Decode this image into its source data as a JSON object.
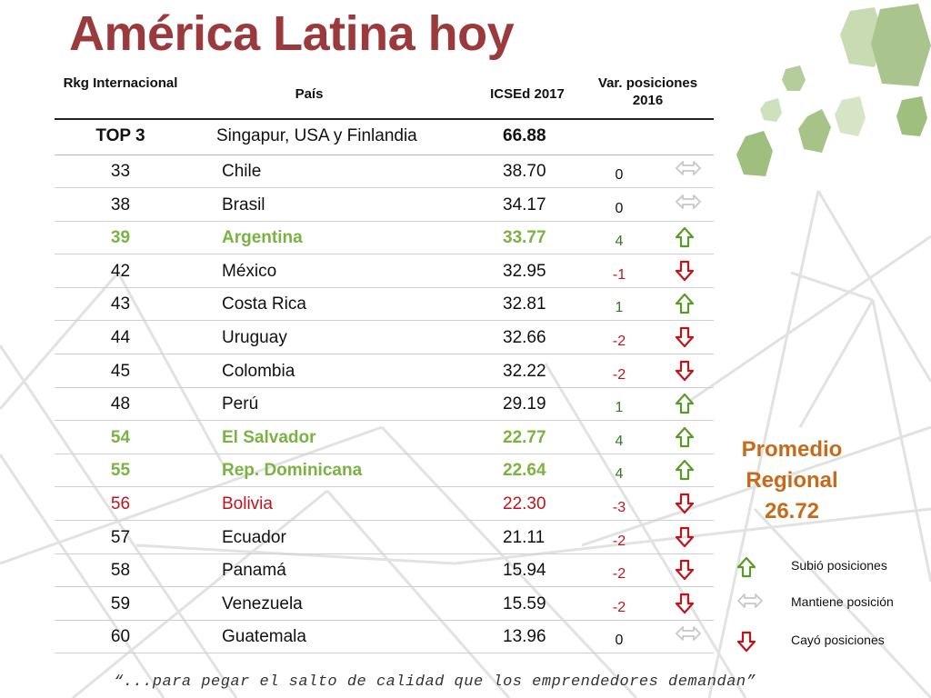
{
  "title": "América Latina hoy",
  "headers": {
    "rank": "Rkg Internacional",
    "pais": "País",
    "icsed": "ICSEd 2017",
    "var": "Var. posiciones 2016"
  },
  "top3": {
    "label": "TOP 3",
    "countries": "Singapur, USA y Finlandia",
    "score": "66.88"
  },
  "rows": [
    {
      "rank": "33",
      "pais": "Chile",
      "icsed": "38.70",
      "var": "0",
      "trend": "same",
      "highlight": "none"
    },
    {
      "rank": "38",
      "pais": "Brasil",
      "icsed": "34.17",
      "var": "0",
      "trend": "same",
      "highlight": "none"
    },
    {
      "rank": "39",
      "pais": "Argentina",
      "icsed": "33.77",
      "var": "4",
      "trend": "up",
      "highlight": "green"
    },
    {
      "rank": "42",
      "pais": "México",
      "icsed": "32.95",
      "var": "-1",
      "trend": "down",
      "highlight": "none"
    },
    {
      "rank": "43",
      "pais": "Costa Rica",
      "icsed": "32.81",
      "var": "1",
      "trend": "up",
      "highlight": "none"
    },
    {
      "rank": "44",
      "pais": "Uruguay",
      "icsed": "32.66",
      "var": "-2",
      "trend": "down",
      "highlight": "none"
    },
    {
      "rank": "45",
      "pais": "Colombia",
      "icsed": "32.22",
      "var": "-2",
      "trend": "down",
      "highlight": "none"
    },
    {
      "rank": "48",
      "pais": "Perú",
      "icsed": "29.19",
      "var": "1",
      "trend": "up",
      "highlight": "none"
    },
    {
      "rank": "54",
      "pais": "El Salvador",
      "icsed": "22.77",
      "var": "4",
      "trend": "up",
      "highlight": "green"
    },
    {
      "rank": "55",
      "pais": "Rep. Dominicana",
      "icsed": "22.64",
      "var": "4",
      "trend": "up",
      "highlight": "green"
    },
    {
      "rank": "56",
      "pais": "Bolivia",
      "icsed": "22.30",
      "var": "-3",
      "trend": "down",
      "highlight": "red"
    },
    {
      "rank": "57",
      "pais": "Ecuador",
      "icsed": "21.11",
      "var": "-2",
      "trend": "down",
      "highlight": "none"
    },
    {
      "rank": "58",
      "pais": "Panamá",
      "icsed": "15.94",
      "var": "-2",
      "trend": "down",
      "highlight": "none"
    },
    {
      "rank": "59",
      "pais": "Venezuela",
      "icsed": "15.59",
      "var": "-2",
      "trend": "down",
      "highlight": "none"
    },
    {
      "rank": "60",
      "pais": "Guatemala",
      "icsed": "13.96",
      "var": "0",
      "trend": "same",
      "highlight": "none"
    }
  ],
  "promedio": {
    "line1": "Promedio",
    "line2": "Regional",
    "value": "26.72"
  },
  "legend": {
    "up": "Subió posiciones",
    "same": "Mantiene posición",
    "down": "Cayó posiciones"
  },
  "quote": "“...para pegar el salto de calidad que los emprendedores demandan”",
  "colors": {
    "title": "#9b3a3c",
    "green_highlight": "#7ab342",
    "red_highlight": "#c0141b",
    "promedio": "#c76a1a",
    "arrow_up": "#5a9a2a",
    "arrow_down": "#c0141b",
    "arrow_same": "#c8c8c8",
    "decoration_green": "#9fbf7f"
  }
}
